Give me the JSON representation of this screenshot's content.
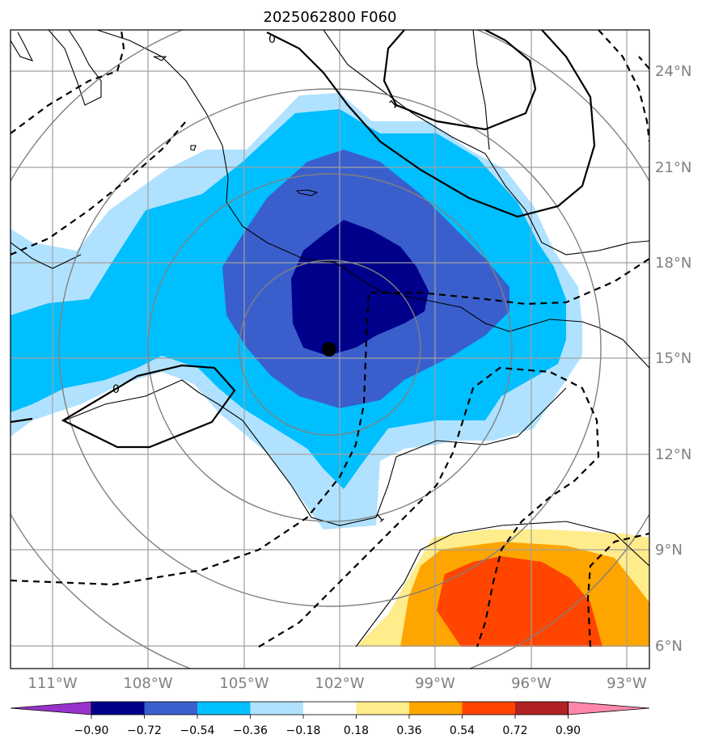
{
  "title": "2025062800 F060",
  "map": {
    "lon_labels": [
      "111°W",
      "108°W",
      "105°W",
      "102°W",
      "99°W",
      "96°W",
      "93°W"
    ],
    "lat_labels": [
      "24°N",
      "21°N",
      "18°N",
      "15°N",
      "12°N",
      "9°N",
      "6°N"
    ],
    "lon_range": [
      -112.3,
      -92.3
    ],
    "lat_range": [
      5.3,
      25.3
    ],
    "grid": true,
    "center_marker": {
      "lon": -102.35,
      "lat": 15.25
    },
    "contour_labels": [
      "0",
      "1",
      "0",
      "1"
    ]
  },
  "colorbar": {
    "labels": [
      "−0.90",
      "−0.72",
      "−0.54",
      "−0.36",
      "−0.18",
      "0.18",
      "0.36",
      "0.54",
      "0.72",
      "0.90"
    ],
    "colors": [
      "#9932cc",
      "#00008b",
      "#3a5fcd",
      "#00bfff",
      "#b0e2ff",
      "#ffffff",
      "#ffec8b",
      "#ffa500",
      "#ff4500",
      "#b22222",
      "#ff88aa"
    ]
  },
  "colors": {
    "fill_m090": "#00008b",
    "fill_m072": "#3a5fcd",
    "fill_m054": "#00bfff",
    "fill_m036": "#b0e2ff",
    "fill_p018": "#ffec8b",
    "fill_p036": "#ffa500",
    "fill_p054": "#ff4500",
    "gridline": "#a0a0a0",
    "range_rings": "#808080"
  }
}
